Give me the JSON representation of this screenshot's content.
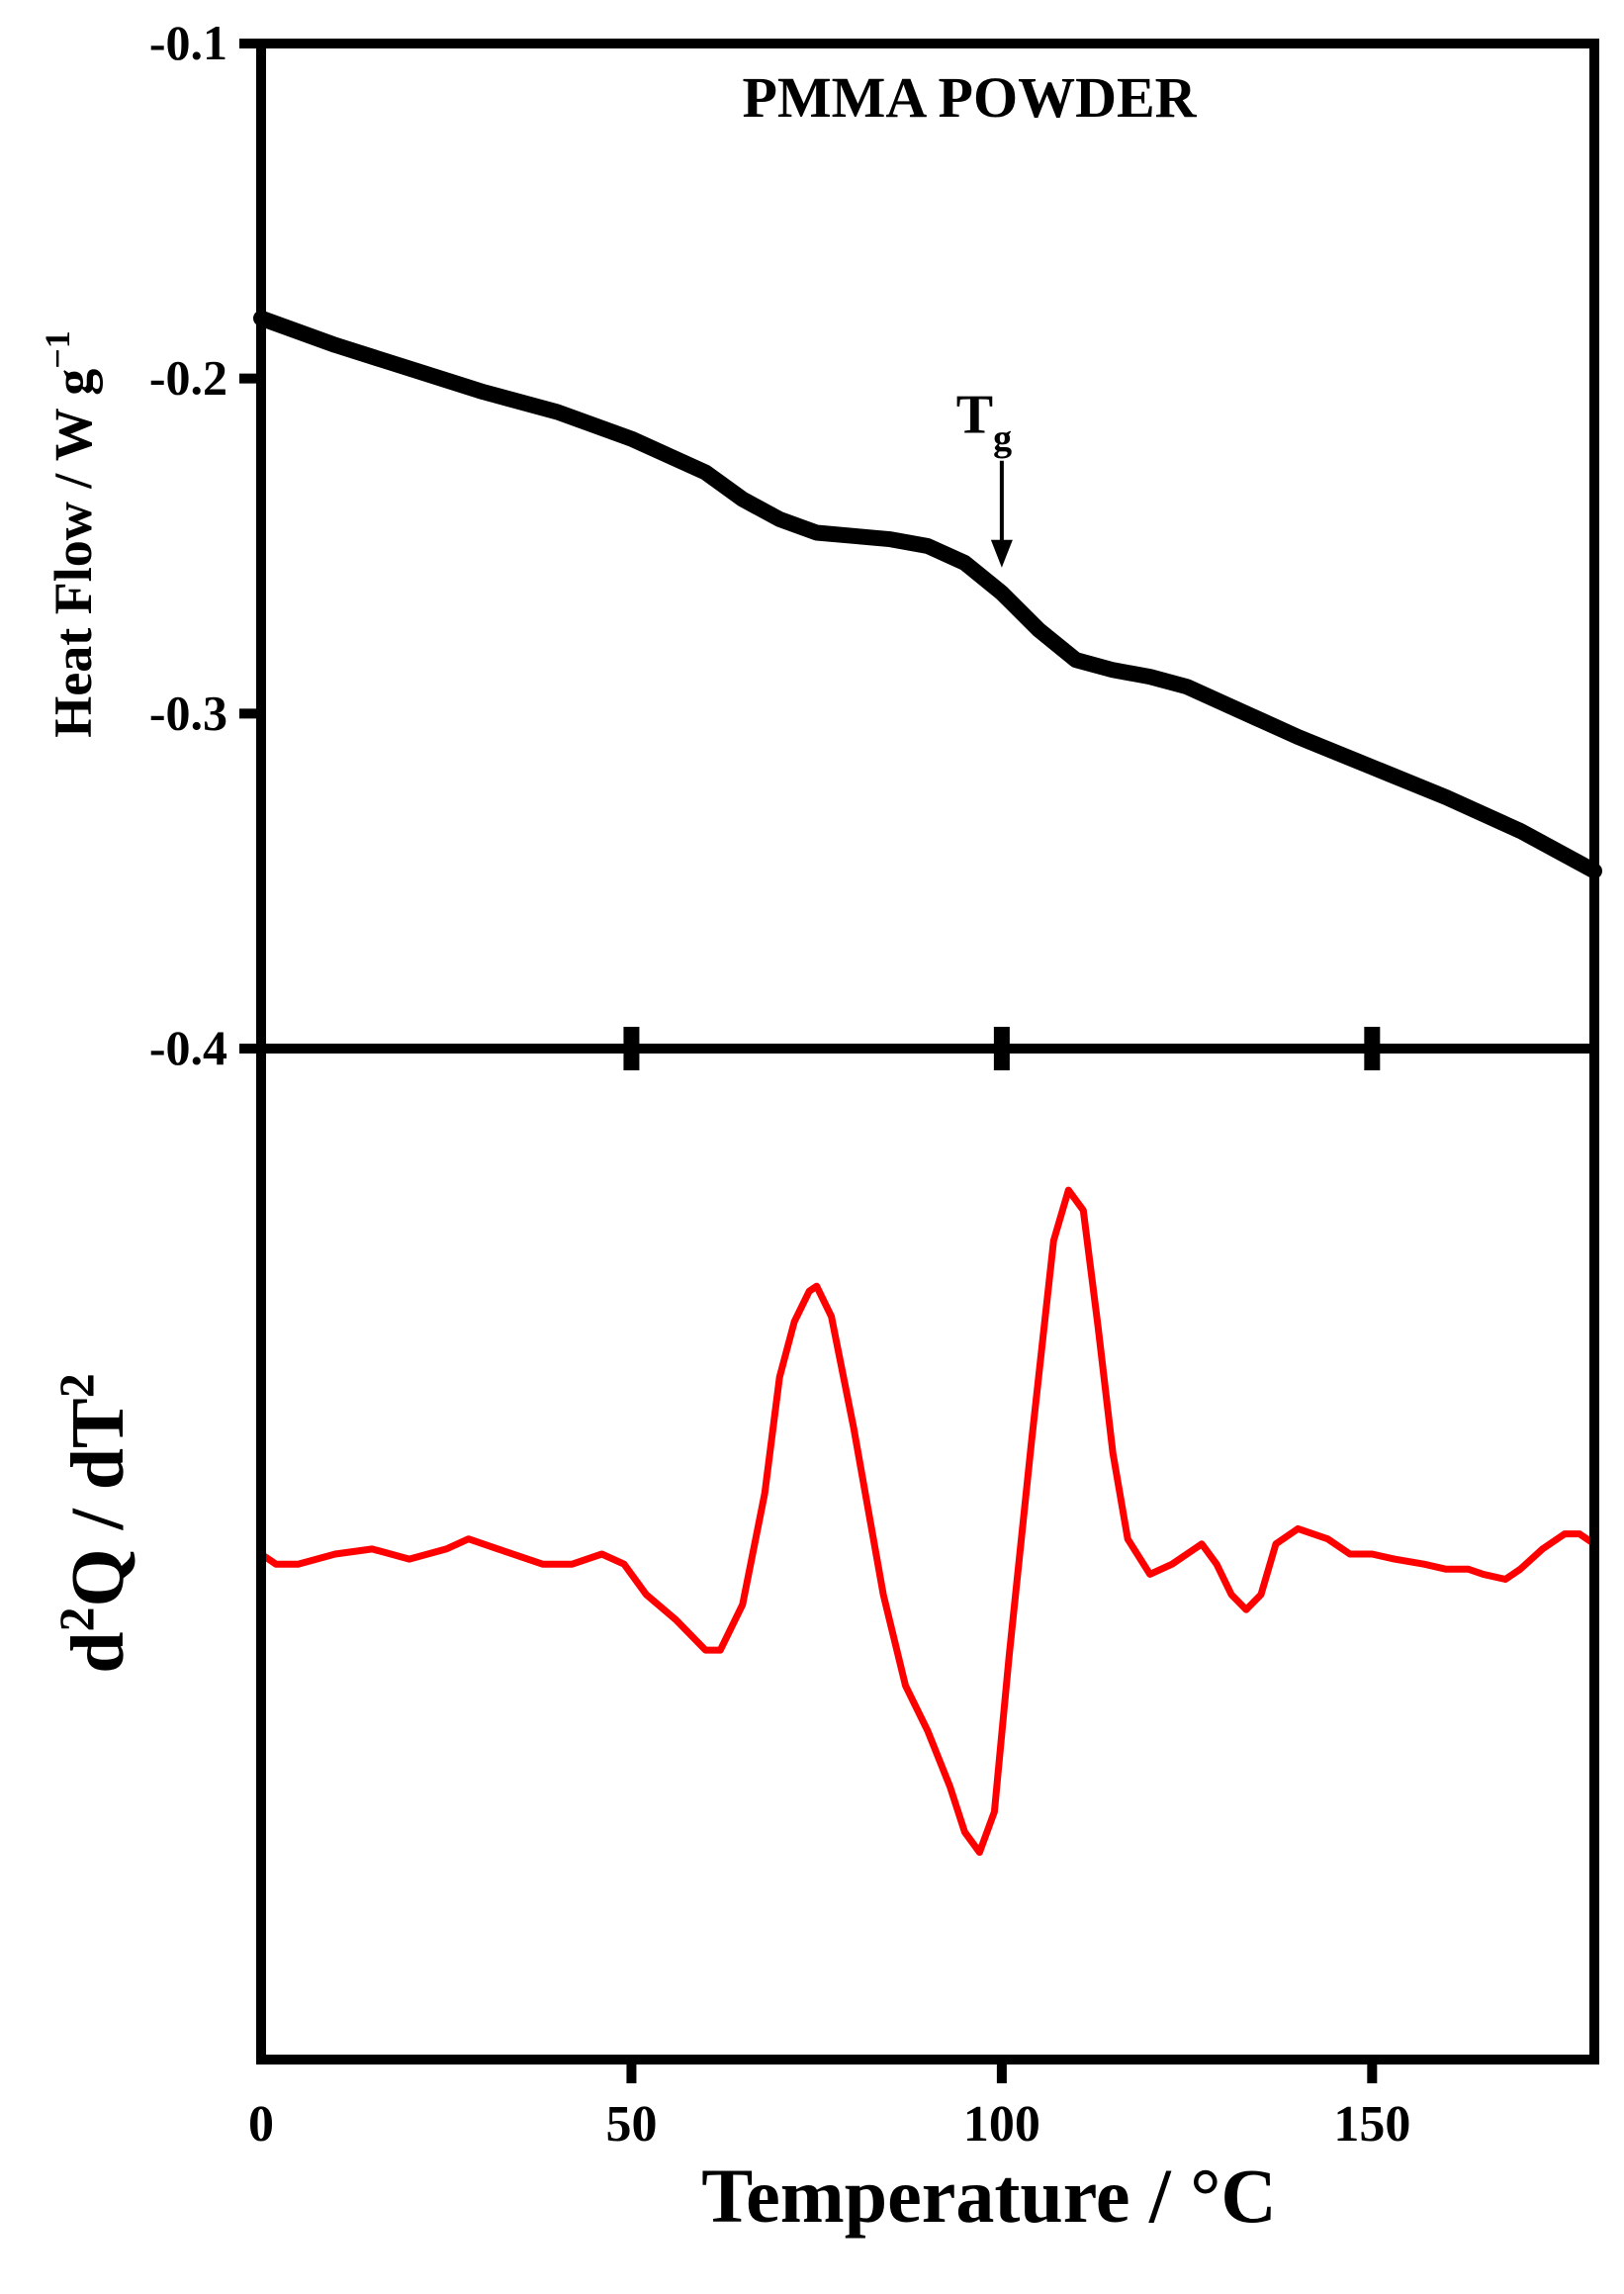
{
  "chart_data": [
    {
      "type": "line",
      "title": "PMMA POWDER",
      "ylabel": "Heat Flow / W g",
      "ylabel_sup": "−1",
      "xlim": [
        0,
        180
      ],
      "ylim": [
        -0.4,
        -0.1
      ],
      "y_ticks": [
        -0.1,
        -0.2,
        -0.3,
        -0.4
      ],
      "y_tick_labels": [
        "-0.1",
        "-0.2",
        "-0.3",
        "-0.4"
      ],
      "x_ticks": [
        50,
        100,
        150
      ],
      "grid": false,
      "annotation": {
        "text": "T",
        "subscript": "g",
        "x": 100,
        "y": -0.257
      },
      "series": [
        {
          "color": "#000000",
          "points": [
            [
              0,
              -0.182
            ],
            [
              10,
              -0.19
            ],
            [
              20,
              -0.197
            ],
            [
              30,
              -0.204
            ],
            [
              40,
              -0.21
            ],
            [
              50,
              -0.218
            ],
            [
              60,
              -0.228
            ],
            [
              65,
              -0.236
            ],
            [
              70,
              -0.242
            ],
            [
              75,
              -0.246
            ],
            [
              80,
              -0.247
            ],
            [
              85,
              -0.248
            ],
            [
              90,
              -0.25
            ],
            [
              95,
              -0.255
            ],
            [
              100,
              -0.264
            ],
            [
              105,
              -0.275
            ],
            [
              110,
              -0.284
            ],
            [
              115,
              -0.287
            ],
            [
              120,
              -0.289
            ],
            [
              125,
              -0.292
            ],
            [
              130,
              -0.297
            ],
            [
              135,
              -0.302
            ],
            [
              140,
              -0.307
            ],
            [
              150,
              -0.316
            ],
            [
              160,
              -0.325
            ],
            [
              170,
              -0.335
            ],
            [
              180,
              -0.347
            ]
          ]
        }
      ]
    },
    {
      "type": "line",
      "ylabel": "d",
      "ylabel_sup1": "2",
      "ylabel_mid": "Q / dT",
      "ylabel_sup2": "2",
      "xlabel": "Temperature / °C",
      "xlim": [
        0,
        180
      ],
      "ylim": [
        -1.0,
        1.0
      ],
      "x_ticks": [
        0,
        50,
        100,
        150
      ],
      "x_tick_labels": [
        "0",
        "50",
        "100",
        "150"
      ],
      "grid": false,
      "series": [
        {
          "color": "#ff0000",
          "points": [
            [
              0,
              0.0
            ],
            [
              2,
              -0.02
            ],
            [
              5,
              -0.02
            ],
            [
              10,
              0.0
            ],
            [
              15,
              0.01
            ],
            [
              20,
              -0.01
            ],
            [
              25,
              0.01
            ],
            [
              28,
              0.03
            ],
            [
              32,
              0.01
            ],
            [
              38,
              -0.02
            ],
            [
              42,
              -0.02
            ],
            [
              46,
              0.0
            ],
            [
              49,
              -0.02
            ],
            [
              52,
              -0.08
            ],
            [
              56,
              -0.13
            ],
            [
              60,
              -0.19
            ],
            [
              62,
              -0.19
            ],
            [
              65,
              -0.1
            ],
            [
              68,
              0.12
            ],
            [
              70,
              0.35
            ],
            [
              72,
              0.46
            ],
            [
              74,
              0.52
            ],
            [
              75,
              0.53
            ],
            [
              77,
              0.47
            ],
            [
              80,
              0.25
            ],
            [
              84,
              -0.08
            ],
            [
              87,
              -0.26
            ],
            [
              90,
              -0.35
            ],
            [
              93,
              -0.46
            ],
            [
              95,
              -0.55
            ],
            [
              97,
              -0.59
            ],
            [
              99,
              -0.51
            ],
            [
              101,
              -0.2
            ],
            [
              104,
              0.22
            ],
            [
              107,
              0.62
            ],
            [
              109,
              0.72
            ],
            [
              111,
              0.68
            ],
            [
              113,
              0.45
            ],
            [
              115,
              0.2
            ],
            [
              117,
              0.03
            ],
            [
              120,
              -0.04
            ],
            [
              123,
              -0.02
            ],
            [
              126,
              0.01
            ],
            [
              127,
              0.02
            ],
            [
              129,
              -0.02
            ],
            [
              131,
              -0.08
            ],
            [
              133,
              -0.11
            ],
            [
              135,
              -0.08
            ],
            [
              137,
              0.02
            ],
            [
              140,
              0.05
            ],
            [
              144,
              0.03
            ],
            [
              147,
              0.0
            ],
            [
              150,
              0.0
            ],
            [
              153,
              -0.01
            ],
            [
              157,
              -0.02
            ],
            [
              160,
              -0.03
            ],
            [
              163,
              -0.03
            ],
            [
              165,
              -0.04
            ],
            [
              168,
              -0.05
            ],
            [
              170,
              -0.03
            ],
            [
              173,
              0.01
            ],
            [
              176,
              0.04
            ],
            [
              178,
              0.04
            ],
            [
              180,
              0.02
            ]
          ]
        }
      ]
    }
  ]
}
